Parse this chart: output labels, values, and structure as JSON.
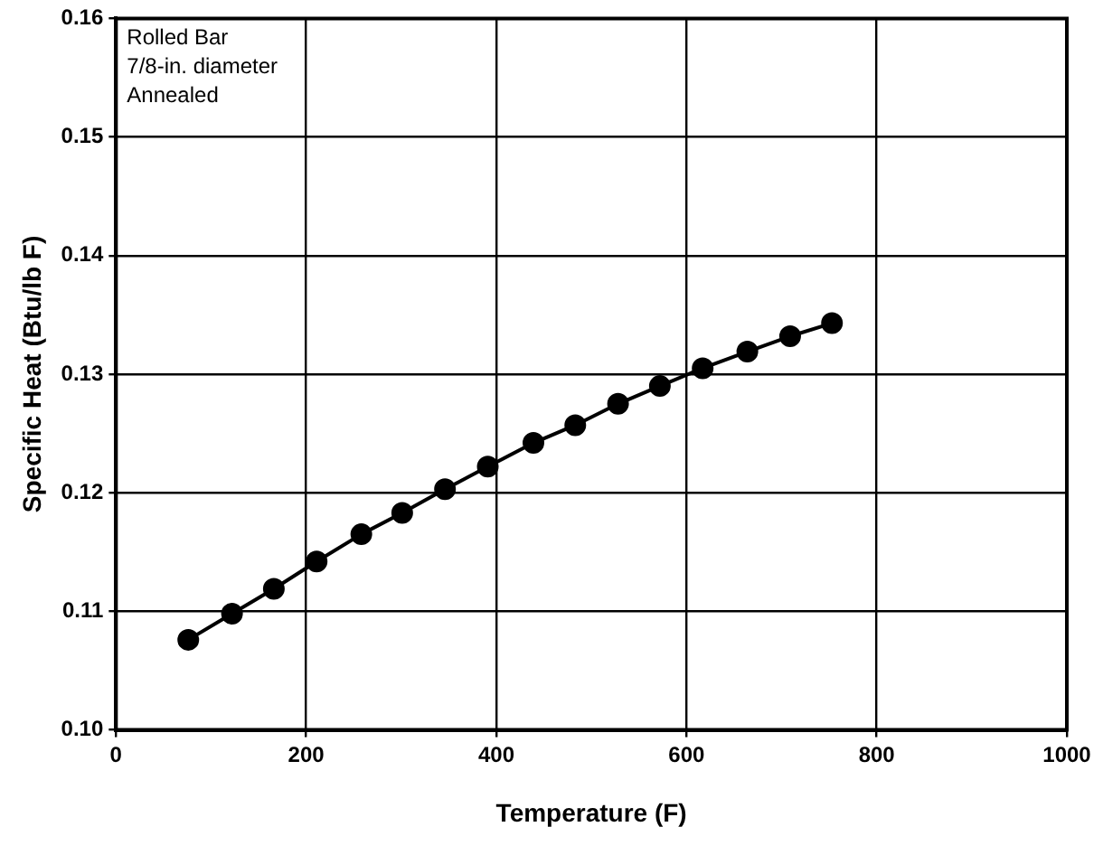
{
  "chart_data": {
    "type": "line",
    "xlabel": "Temperature (F)",
    "ylabel": "Specific Heat (Btu/lb F)",
    "annotations": [
      "Rolled Bar",
      "7/8-in. diameter",
      "Annealed"
    ],
    "x": [
      76,
      122,
      166,
      211,
      258,
      301,
      346,
      391,
      439,
      483,
      528,
      572,
      617,
      664,
      709,
      753
    ],
    "series": [
      {
        "color": "#000000",
        "values": [
          0.1076,
          0.1098,
          0.1119,
          0.1142,
          0.1165,
          0.1183,
          0.1203,
          0.1222,
          0.1242,
          0.1257,
          0.1275,
          0.129,
          0.1305,
          0.1319,
          0.1332,
          0.1343
        ]
      }
    ],
    "xlim": [
      0,
      1000
    ],
    "xticks": [
      0,
      200,
      400,
      600,
      800,
      1000
    ],
    "ylim": [
      0.1,
      0.16
    ],
    "yticks": [
      {
        "value": 0.1,
        "label": "0.10"
      },
      {
        "value": 0.11,
        "label": "0.11"
      },
      {
        "value": 0.12,
        "label": "0.12"
      },
      {
        "value": 0.13,
        "label": "0.13"
      },
      {
        "value": 0.14,
        "label": "0.14"
      },
      {
        "value": 0.15,
        "label": "0.15"
      },
      {
        "value": 0.16,
        "label": "0.16"
      }
    ],
    "grid": true,
    "legend": false,
    "marker": "circle",
    "line_style": "solid"
  }
}
